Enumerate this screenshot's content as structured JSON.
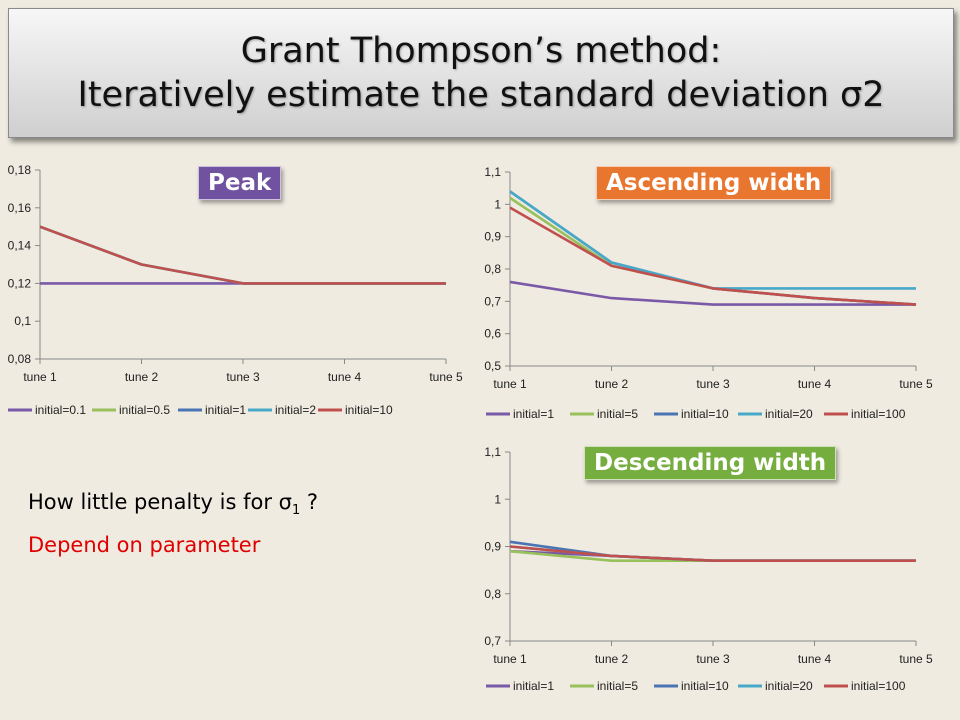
{
  "title": {
    "line1": "Grant Thompson’s method:",
    "line2": "Iteratively estimate the standard deviation σ2"
  },
  "text": {
    "line1_pre": "How little penalty is for σ",
    "line1_sub": "1",
    "line1_post": " ?",
    "line2": "Depend on parameter"
  },
  "colors": {
    "purple": "#7a5aa6",
    "green": "#98c15c",
    "blue": "#4a74b4",
    "cyan": "#48a8c8",
    "red": "#c0504d"
  },
  "chart_data": [
    {
      "type": "line",
      "badge": "Peak",
      "badge_color": "#7052a0",
      "categories": [
        "tune 1",
        "tune 2",
        "tune 3",
        "tune 4",
        "tune 5"
      ],
      "ylim": [
        0.08,
        0.18
      ],
      "yticks": [
        "0,08",
        "0,1",
        "0,12",
        "0,14",
        "0,16",
        "0,18"
      ],
      "series": [
        {
          "name": "initial=0.1",
          "color": "#7a5aa6",
          "values": [
            0.12,
            0.12,
            0.12,
            0.12,
            0.12
          ]
        },
        {
          "name": "initial=0.5",
          "color": "#98c15c",
          "values": [
            0.15,
            0.13,
            0.12,
            0.12,
            0.12
          ]
        },
        {
          "name": "initial=1",
          "color": "#4a74b4",
          "values": [
            0.15,
            0.13,
            0.12,
            0.12,
            0.12
          ]
        },
        {
          "name": "initial=2",
          "color": "#48a8c8",
          "values": [
            0.15,
            0.13,
            0.12,
            0.12,
            0.12
          ]
        },
        {
          "name": "initial=10",
          "color": "#c0504d",
          "values": [
            0.15,
            0.13,
            0.12,
            0.12,
            0.12
          ]
        }
      ]
    },
    {
      "type": "line",
      "badge": "Ascending width",
      "badge_color": "#e9762e",
      "categories": [
        "tune 1",
        "tune 2",
        "tune 3",
        "tune 4",
        "tune 5"
      ],
      "ylim": [
        0.5,
        1.1
      ],
      "yticks": [
        "0,5",
        "0,6",
        "0,7",
        "0,8",
        "0,9",
        "1",
        "1,1"
      ],
      "series": [
        {
          "name": "initial=1",
          "color": "#7a5aa6",
          "values": [
            0.76,
            0.71,
            0.69,
            0.69,
            0.69
          ]
        },
        {
          "name": "initial=5",
          "color": "#98c15c",
          "values": [
            1.02,
            0.81,
            0.74,
            0.71,
            0.69
          ]
        },
        {
          "name": "initial=10",
          "color": "#4a74b4",
          "values": [
            1.04,
            0.82,
            0.74,
            0.71,
            0.69
          ]
        },
        {
          "name": "initial=20",
          "color": "#48a8c8",
          "values": [
            1.04,
            0.82,
            0.74,
            0.74,
            0.74
          ]
        },
        {
          "name": "initial=100",
          "color": "#c0504d",
          "values": [
            0.99,
            0.81,
            0.74,
            0.71,
            0.69
          ]
        }
      ]
    },
    {
      "type": "line",
      "badge": "Descending width",
      "badge_color": "#76ad3f",
      "categories": [
        "tune 1",
        "tune 2",
        "tune 3",
        "tune 4",
        "tune 5"
      ],
      "ylim": [
        0.7,
        1.1
      ],
      "yticks": [
        "0,7",
        "0,8",
        "0,9",
        "1",
        "1,1"
      ],
      "series": [
        {
          "name": "initial=1",
          "color": "#7a5aa6",
          "values": [
            0.89,
            0.88,
            0.87,
            0.87,
            0.87
          ]
        },
        {
          "name": "initial=5",
          "color": "#98c15c",
          "values": [
            0.89,
            0.87,
            0.87,
            0.87,
            0.87
          ]
        },
        {
          "name": "initial=10",
          "color": "#4a74b4",
          "values": [
            0.91,
            0.88,
            0.87,
            0.87,
            0.87
          ]
        },
        {
          "name": "initial=20",
          "color": "#48a8c8",
          "values": [
            0.9,
            0.88,
            0.87,
            0.87,
            0.87
          ]
        },
        {
          "name": "initial=100",
          "color": "#c0504d",
          "values": [
            0.9,
            0.88,
            0.87,
            0.87,
            0.87
          ]
        }
      ]
    }
  ]
}
